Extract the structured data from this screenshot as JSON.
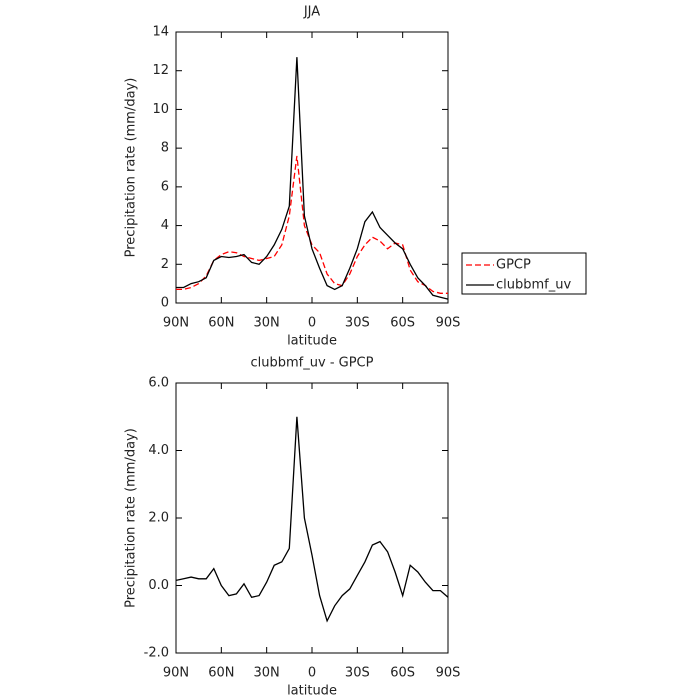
{
  "chart_data": [
    {
      "type": "line",
      "title": "JJA",
      "xlabel": "latitude",
      "ylabel": "Precipitation rate  (mm/day)",
      "x": [
        90,
        85,
        80,
        75,
        70,
        65,
        60,
        55,
        50,
        45,
        40,
        35,
        30,
        25,
        20,
        15,
        10,
        5,
        0,
        -5,
        -10,
        -15,
        -20,
        -25,
        -30,
        -35,
        -40,
        -45,
        -50,
        -55,
        -60,
        -65,
        -70,
        -75,
        -80,
        -85,
        -90
      ],
      "series": [
        {
          "name": "GPCP",
          "color": "#ff0000",
          "dashed": true,
          "values": [
            0.7,
            0.7,
            0.8,
            1.0,
            1.4,
            2.2,
            2.5,
            2.65,
            2.6,
            2.4,
            2.3,
            2.2,
            2.3,
            2.4,
            3.0,
            4.5,
            7.6,
            4.0,
            3.0,
            2.6,
            1.5,
            1.0,
            0.9,
            1.5,
            2.4,
            3.0,
            3.4,
            3.2,
            2.8,
            3.1,
            3.0,
            1.7,
            1.1,
            0.9,
            0.6,
            0.5,
            0.5
          ]
        },
        {
          "name": "clubbmf_uv",
          "color": "#000000",
          "dashed": false,
          "values": [
            0.8,
            0.8,
            1.0,
            1.1,
            1.3,
            2.2,
            2.4,
            2.35,
            2.4,
            2.5,
            2.1,
            2.0,
            2.4,
            3.0,
            3.8,
            5.0,
            12.7,
            4.5,
            2.8,
            1.8,
            0.9,
            0.7,
            0.9,
            1.8,
            2.8,
            4.2,
            4.7,
            3.9,
            3.5,
            3.1,
            2.8,
            2.0,
            1.3,
            0.9,
            0.4,
            0.3,
            0.2
          ]
        }
      ],
      "xlim": [
        90,
        -90
      ],
      "xticks": [
        {
          "value": 90,
          "label": "90N"
        },
        {
          "value": 60,
          "label": "60N"
        },
        {
          "value": 30,
          "label": "30N"
        },
        0,
        {
          "value": -30,
          "label": "30S"
        },
        {
          "value": -60,
          "label": "60S"
        },
        {
          "value": -90,
          "label": "90S"
        }
      ],
      "ylim": [
        0,
        14
      ],
      "yticks": [
        0,
        2,
        4,
        6,
        8,
        10,
        12,
        14
      ],
      "legend": "right"
    },
    {
      "type": "line",
      "title": "clubbmf_uv - GPCP",
      "xlabel": "latitude",
      "ylabel": "Precipitation rate  (mm/day)",
      "x": [
        90,
        85,
        80,
        75,
        70,
        65,
        60,
        55,
        50,
        45,
        40,
        35,
        30,
        25,
        20,
        15,
        10,
        5,
        0,
        -5,
        -10,
        -15,
        -20,
        -25,
        -30,
        -35,
        -40,
        -45,
        -50,
        -55,
        -60,
        -65,
        -70,
        -75,
        -80,
        -85,
        -90
      ],
      "series": [
        {
          "color": "#000000",
          "dashed": false,
          "values": [
            0.15,
            0.2,
            0.25,
            0.2,
            0.2,
            0.5,
            0.0,
            -0.3,
            -0.25,
            0.05,
            -0.35,
            -0.3,
            0.1,
            0.6,
            0.7,
            1.1,
            5.0,
            2.0,
            0.9,
            -0.3,
            -1.05,
            -0.6,
            -0.3,
            -0.1,
            0.3,
            0.7,
            1.2,
            1.3,
            1.0,
            0.4,
            -0.3,
            0.6,
            0.4,
            0.1,
            -0.15,
            -0.15,
            -0.35
          ]
        }
      ],
      "xlim": [
        90,
        -90
      ],
      "xticks": [
        {
          "value": 90,
          "label": "90N"
        },
        {
          "value": 60,
          "label": "60N"
        },
        {
          "value": 30,
          "label": "30N"
        },
        0,
        {
          "value": -30,
          "label": "30S"
        },
        {
          "value": -60,
          "label": "60S"
        },
        {
          "value": -90,
          "label": "90S"
        }
      ],
      "ylim": [
        -2,
        6
      ],
      "yticks": [
        {
          "value": -2,
          "label": "-2.0"
        },
        {
          "value": 0,
          "label": "0.0"
        },
        {
          "value": 2,
          "label": "2.0"
        },
        {
          "value": 4,
          "label": "4.0"
        },
        {
          "value": 6,
          "label": "6.0"
        }
      ]
    }
  ]
}
